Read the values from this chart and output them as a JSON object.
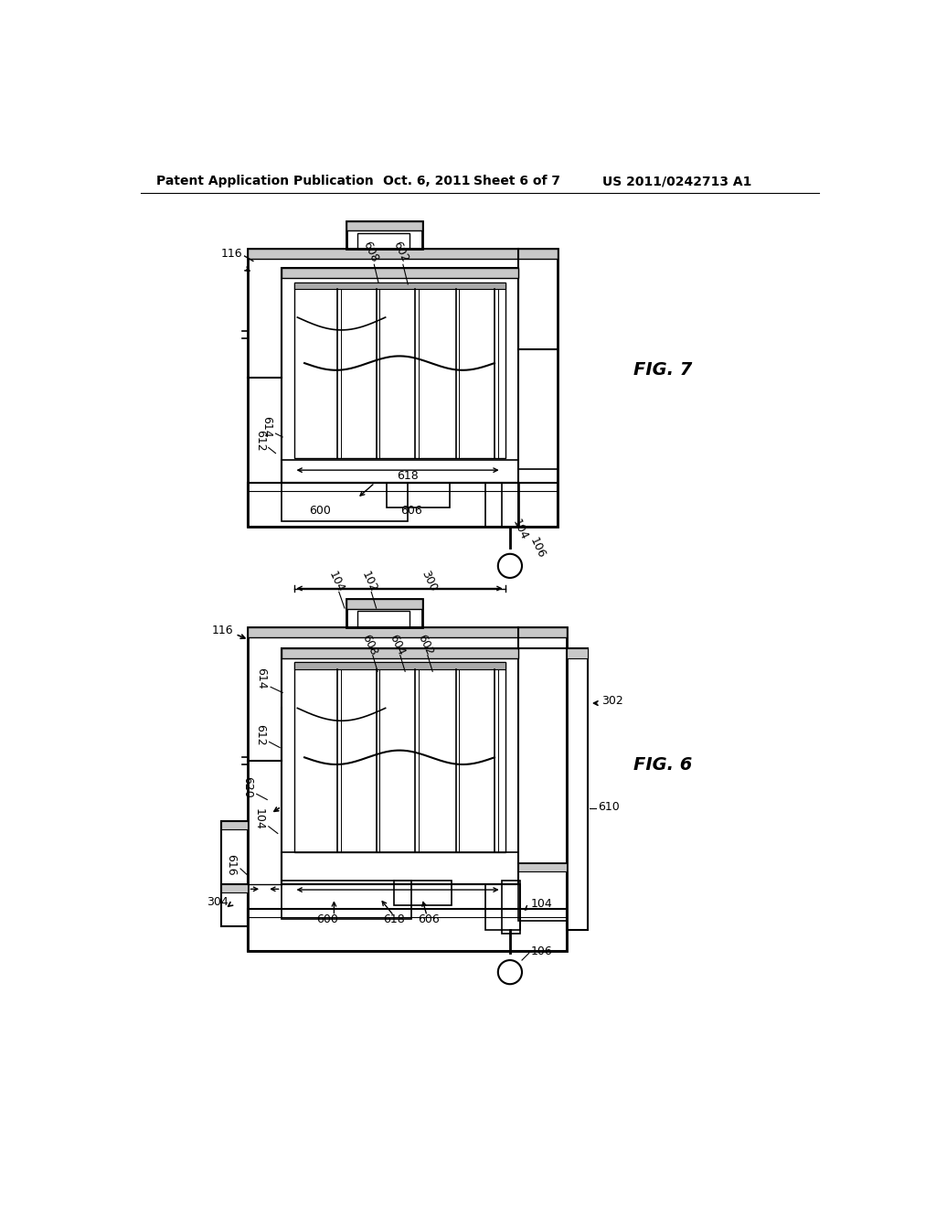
{
  "bg_color": "#ffffff",
  "line_color": "#000000",
  "header_text": "Patent Application Publication",
  "header_date": "Oct. 6, 2011",
  "header_sheet": "Sheet 6 of 7",
  "header_patent": "US 2011/0242713 A1",
  "fig7_label": "FIG. 7",
  "fig6_label": "FIG. 6",
  "hatch_color": "#bbbbbb"
}
